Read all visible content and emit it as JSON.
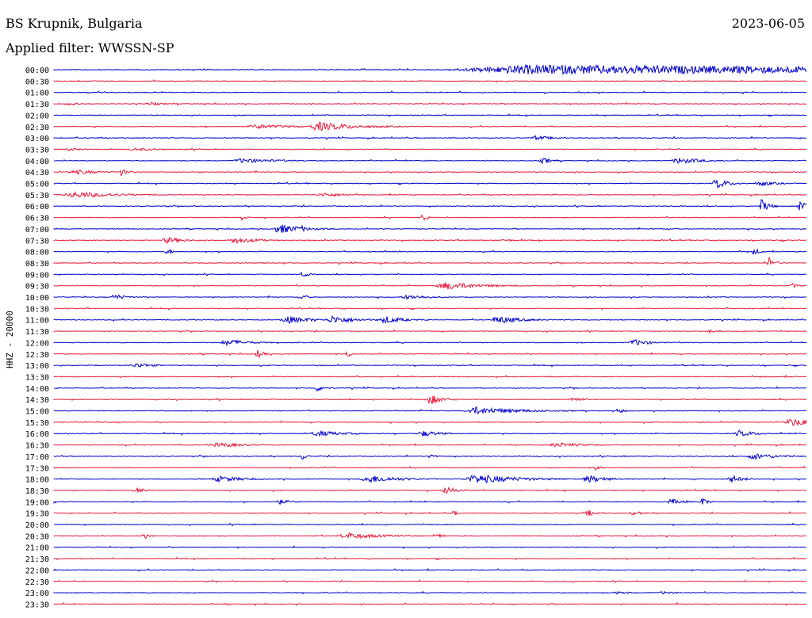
{
  "header": {
    "station": "BS Krupnik, Bulgaria",
    "date": "2023-06-05",
    "filter": "Applied filter: WWSSN-SP"
  },
  "chart_data": {
    "type": "line",
    "title": "BS Krupnik, Bulgaria",
    "date": "2023-06-05",
    "ylabel": "HHZ - 20000",
    "filter": "WWSSN-SP",
    "trace_colors": [
      "#0000cc",
      "#e8193c"
    ],
    "rows": [
      {
        "label": "00:00",
        "events": [
          [
            0.63,
            0.4,
            6,
            1.3
          ]
        ]
      },
      {
        "label": "00:30",
        "events": []
      },
      {
        "label": "01:00",
        "events": []
      },
      {
        "label": "01:30",
        "events": [
          [
            0.02,
            0.03,
            2,
            0.3
          ],
          [
            0.13,
            0.03,
            2,
            0.3
          ]
        ]
      },
      {
        "label": "02:00",
        "events": []
      },
      {
        "label": "02:30",
        "events": [
          [
            0.27,
            0.06,
            3,
            0.4
          ],
          [
            0.35,
            0.05,
            6,
            0.5
          ]
        ]
      },
      {
        "label": "03:00",
        "events": [
          [
            0.64,
            0.03,
            3,
            0.4
          ]
        ]
      },
      {
        "label": "03:30",
        "events": [
          [
            0.02,
            0.03,
            2,
            0.3
          ],
          [
            0.11,
            0.05,
            2,
            0.3
          ]
        ]
      },
      {
        "label": "04:00",
        "events": [
          [
            0.25,
            0.06,
            3,
            0.4
          ],
          [
            0.65,
            0.02,
            4,
            0.3
          ],
          [
            0.83,
            0.04,
            4,
            0.4
          ]
        ]
      },
      {
        "label": "04:30",
        "events": [
          [
            0.03,
            0.06,
            3,
            0.3
          ],
          [
            0.09,
            0.01,
            6,
            0.3
          ]
        ]
      },
      {
        "label": "05:00",
        "events": [
          [
            0.88,
            0.02,
            7,
            0.4
          ],
          [
            0.94,
            0.03,
            3,
            0.4
          ]
        ]
      },
      {
        "label": "05:30",
        "events": [
          [
            0.03,
            0.07,
            4,
            0.4
          ],
          [
            0.36,
            0.04,
            3,
            0.3
          ]
        ]
      },
      {
        "label": "06:00",
        "events": [
          [
            0.94,
            0.01,
            9,
            0.5
          ],
          [
            0.99,
            0.01,
            9,
            0.5
          ]
        ]
      },
      {
        "label": "06:30",
        "events": [
          [
            0.25,
            0.01,
            4,
            0.3
          ],
          [
            0.49,
            0.01,
            5,
            0.3
          ]
        ]
      },
      {
        "label": "07:00",
        "events": [
          [
            0.3,
            0.04,
            6,
            0.4
          ],
          [
            0.33,
            0.01,
            4,
            0.3
          ]
        ]
      },
      {
        "label": "07:30",
        "events": [
          [
            0.15,
            0.03,
            4,
            0.4
          ],
          [
            0.24,
            0.04,
            4,
            0.4
          ],
          [
            0.6,
            0.02,
            2,
            0.3
          ]
        ]
      },
      {
        "label": "08:00",
        "events": [
          [
            0.15,
            0.01,
            4,
            0.4
          ],
          [
            0.93,
            0.01,
            5,
            0.4
          ]
        ]
      },
      {
        "label": "08:30",
        "events": [
          [
            0.95,
            0.01,
            8,
            0.4
          ]
        ]
      },
      {
        "label": "09:00",
        "events": [
          [
            0.33,
            0.01,
            4,
            0.4
          ]
        ]
      },
      {
        "label": "09:30",
        "events": [
          [
            0.52,
            0.05,
            5,
            0.5
          ],
          [
            0.98,
            0.01,
            4,
            0.4
          ]
        ]
      },
      {
        "label": "10:00",
        "events": [
          [
            0.08,
            0.02,
            4,
            0.4
          ],
          [
            0.33,
            0.01,
            5,
            0.3
          ],
          [
            0.47,
            0.04,
            3,
            0.4
          ]
        ]
      },
      {
        "label": "10:30",
        "events": []
      },
      {
        "label": "11:00",
        "events": [
          [
            0.31,
            0.04,
            5,
            0.4
          ],
          [
            0.37,
            0.04,
            5,
            0.4
          ],
          [
            0.44,
            0.03,
            5,
            0.4
          ],
          [
            0.59,
            0.04,
            5,
            0.4
          ]
        ]
      },
      {
        "label": "11:30",
        "events": [
          [
            0.87,
            0.01,
            3,
            0.3
          ]
        ]
      },
      {
        "label": "12:00",
        "events": [
          [
            0.23,
            0.04,
            4,
            0.4
          ],
          [
            0.77,
            0.03,
            4,
            0.4
          ]
        ]
      },
      {
        "label": "12:30",
        "events": [
          [
            0.27,
            0.01,
            6,
            0.4
          ],
          [
            0.39,
            0.01,
            4,
            0.3
          ]
        ]
      },
      {
        "label": "13:00",
        "events": [
          [
            0.11,
            0.04,
            3,
            0.3
          ]
        ]
      },
      {
        "label": "13:30",
        "events": []
      },
      {
        "label": "14:00",
        "events": [
          [
            0.35,
            0.02,
            4,
            0.3
          ]
        ]
      },
      {
        "label": "14:30",
        "events": [
          [
            0.5,
            0.02,
            7,
            0.4
          ],
          [
            0.69,
            0.02,
            4,
            0.3
          ]
        ]
      },
      {
        "label": "15:00",
        "events": [
          [
            0.56,
            0.06,
            5,
            0.5
          ],
          [
            0.75,
            0.01,
            5,
            0.3
          ]
        ]
      },
      {
        "label": "15:30",
        "events": [
          [
            0.98,
            0.04,
            5,
            0.5
          ]
        ]
      },
      {
        "label": "16:00",
        "events": [
          [
            0.35,
            0.04,
            4,
            0.4
          ],
          [
            0.49,
            0.03,
            4,
            0.4
          ],
          [
            0.91,
            0.03,
            4,
            0.4
          ]
        ]
      },
      {
        "label": "16:30",
        "events": [
          [
            0.22,
            0.06,
            3,
            0.3
          ],
          [
            0.67,
            0.06,
            3,
            0.3
          ]
        ]
      },
      {
        "label": "17:00",
        "events": [
          [
            0.33,
            0.01,
            5,
            0.3
          ],
          [
            0.5,
            0.01,
            5,
            0.3
          ],
          [
            0.93,
            0.04,
            4,
            0.4
          ]
        ]
      },
      {
        "label": "17:30",
        "events": [
          [
            0.72,
            0.01,
            4,
            0.3
          ]
        ]
      },
      {
        "label": "18:00",
        "events": [
          [
            0.22,
            0.04,
            4,
            0.4
          ],
          [
            0.42,
            0.05,
            5,
            0.4
          ],
          [
            0.56,
            0.06,
            6,
            0.5
          ],
          [
            0.71,
            0.03,
            5,
            0.4
          ],
          [
            0.9,
            0.02,
            5,
            0.4
          ]
        ]
      },
      {
        "label": "18:30",
        "events": [
          [
            0.11,
            0.02,
            4,
            0.3
          ],
          [
            0.52,
            0.02,
            5,
            0.4
          ]
        ]
      },
      {
        "label": "19:00",
        "events": [
          [
            0.3,
            0.03,
            3,
            0.3
          ],
          [
            0.82,
            0.02,
            4,
            0.4
          ],
          [
            0.86,
            0.01,
            6,
            0.4
          ]
        ]
      },
      {
        "label": "19:30",
        "events": [
          [
            0.53,
            0.01,
            4,
            0.3
          ],
          [
            0.71,
            0.02,
            4,
            0.3
          ],
          [
            0.77,
            0.02,
            3,
            0.3
          ]
        ]
      },
      {
        "label": "20:00",
        "events": []
      },
      {
        "label": "20:30",
        "events": [
          [
            0.12,
            0.01,
            5,
            0.3
          ],
          [
            0.39,
            0.06,
            4,
            0.4
          ],
          [
            0.51,
            0.01,
            4,
            0.3
          ]
        ]
      },
      {
        "label": "21:00",
        "events": []
      },
      {
        "label": "21:30",
        "events": []
      },
      {
        "label": "22:00",
        "events": []
      },
      {
        "label": "22:30",
        "events": []
      },
      {
        "label": "23:00",
        "events": [
          [
            0.75,
            0.03,
            2,
            0.3
          ],
          [
            0.81,
            0.03,
            2,
            0.3
          ]
        ]
      },
      {
        "label": "23:30",
        "events": []
      }
    ]
  }
}
